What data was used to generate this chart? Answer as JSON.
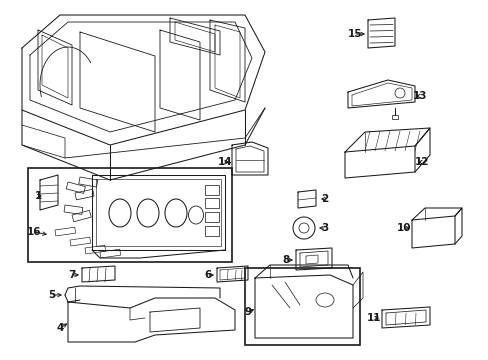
{
  "bg_color": "#ffffff",
  "line_color": "#1a1a1a",
  "fig_width": 4.89,
  "fig_height": 3.6,
  "dpi": 100,
  "lw": 0.75,
  "label_fontsize": 7.5
}
